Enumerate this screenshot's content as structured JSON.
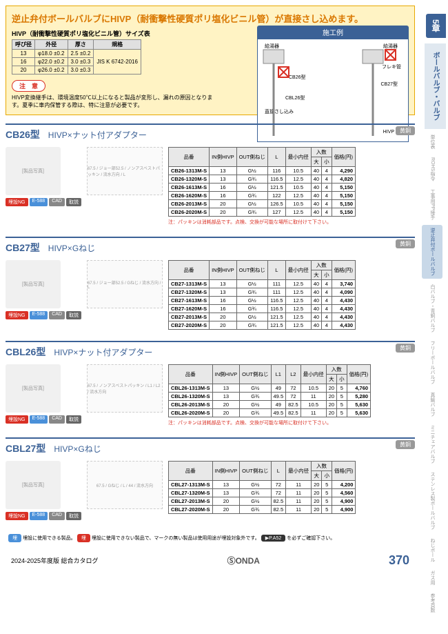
{
  "sidebar": {
    "chapter": "5章",
    "section": "ボールバルブ・バルブ",
    "mini_labels": [
      "単位表",
      "ROHS指令",
      "工事用PP接手",
      "逆止弁付ボールバルブ",
      "白バルブ・青銅バルブ",
      "フリーボールバルブ",
      "真鍮バルブ",
      "ミニチェアバルブ",
      "ステンレス製ボールバルブ",
      "ねじボール",
      "ガス用",
      "参考頁数"
    ]
  },
  "highlight": {
    "title": "逆止弁付ボールバルブにHIVP（耐衝撃性硬質ポリ塩化ビニル管）が直接さし込めます。",
    "size_caption": "HIVP（耐衝撃性硬質ポリ塩化ビニル管）サイズ表",
    "size_headers": [
      "呼び径",
      "外径",
      "厚さ",
      "規格"
    ],
    "size_rows": [
      [
        "13",
        "φ18.0 ±0.2",
        "2.5 ±0.2",
        "JIS K 6742-2016"
      ],
      [
        "16",
        "φ22.0 ±0.2",
        "3.0 ±0.3",
        ""
      ],
      [
        "20",
        "φ26.0 ±0.2",
        "3.0 ±0.3",
        ""
      ]
    ],
    "caution_label": "注　意",
    "caution_text": "HIVP変換継手は、環境温度50℃以上になると製品が変形し、漏れの原因となります。夏季に車内保管する際は、特に注意が必要です。",
    "install_label": "施工例",
    "install_labels": {
      "kyutou": "給湯器",
      "kyusui": "給湯器",
      "flexi": "フレキ管",
      "cb26": "CB26型",
      "cb27": "CB27型",
      "cbl26": "CBL26型",
      "hivp": "HIVP",
      "sasikomi": "直接さし込み"
    }
  },
  "badges": {
    "ng": "埋設NG",
    "e588": "E-588",
    "cad": "CAD",
    "link": "取説"
  },
  "products": [
    {
      "id": "cb26",
      "title": "CB26型",
      "subtitle": "HIVP×ナット付アダプター",
      "material": "黄銅",
      "headers": [
        "品番",
        "IN側HIVP",
        "OUT側ねじ",
        "L",
        "最小内径",
        "入数大",
        "入数小",
        "価格(円)"
      ],
      "header_span": {
        "label_inqty": "入数",
        "cols": [
          "大",
          "小"
        ]
      },
      "rows": [
        [
          "CB26-1313M-S",
          "13",
          "G½",
          "116",
          "10.5",
          "40",
          "4",
          "4,290"
        ],
        [
          "CB26-1320M-S",
          "13",
          "G¾",
          "116.5",
          "12.5",
          "40",
          "4",
          "4,820"
        ],
        [
          "CB26-1613M-S",
          "16",
          "G½",
          "121.5",
          "10.5",
          "40",
          "4",
          "5,150"
        ],
        [
          "CB26-1620M-S",
          "16",
          "G¾",
          "122",
          "12.5",
          "40",
          "4",
          "5,150"
        ],
        [
          "CB26-2013M-S",
          "20",
          "G½",
          "126.5",
          "10.5",
          "40",
          "4",
          "5,150"
        ],
        [
          "CB26-2020M-S",
          "20",
          "G¾",
          "127",
          "12.5",
          "40",
          "4",
          "5,150"
        ]
      ],
      "note": "注：パッキンは消耗部品です。点検、交換が可能な場所に取付けて下さい。",
      "diagram_labels": [
        "67.5",
        "ジョー部52.5",
        "ノンアスベストパッキン",
        "流水方向",
        "L"
      ]
    },
    {
      "id": "cb27",
      "title": "CB27型",
      "subtitle": "HIVP×Gねじ",
      "material": "黄銅",
      "headers": [
        "品番",
        "IN側HIVP",
        "OUT側ねじ",
        "L",
        "最小内径",
        "入数大",
        "入数小",
        "価格(円)"
      ],
      "rows": [
        [
          "CB27-1313M-S",
          "13",
          "G½",
          "111",
          "12.5",
          "40",
          "4",
          "3,740"
        ],
        [
          "CB27-1320M-S",
          "13",
          "G¾",
          "111",
          "12.5",
          "40",
          "4",
          "4,090"
        ],
        [
          "CB27-1613M-S",
          "16",
          "G½",
          "116.5",
          "12.5",
          "40",
          "4",
          "4,430"
        ],
        [
          "CB27-1620M-S",
          "16",
          "G¾",
          "116.5",
          "12.5",
          "40",
          "4",
          "4,430"
        ],
        [
          "CB27-2013M-S",
          "20",
          "G½",
          "121.5",
          "12.5",
          "40",
          "4",
          "4,430"
        ],
        [
          "CB27-2020M-S",
          "20",
          "G¾",
          "121.5",
          "12.5",
          "40",
          "4",
          "4,430"
        ]
      ],
      "diagram_labels": [
        "67.5",
        "ジョー部52.5",
        "Gねじ",
        "流水方向",
        "L"
      ]
    },
    {
      "id": "cbl26",
      "title": "CBL26型",
      "subtitle": "HIVP×ナット付アダプター",
      "material": "黄銅",
      "headers": [
        "品番",
        "IN側HIVP",
        "OUT側ねじ",
        "L1",
        "L2",
        "最小内径",
        "入数大",
        "入数小",
        "価格(円)"
      ],
      "rows": [
        [
          "CBL26-1313M-S",
          "13",
          "G½",
          "49",
          "72",
          "10.5",
          "20",
          "5",
          "4,760"
        ],
        [
          "CBL26-1320M-S",
          "13",
          "G¾",
          "49.5",
          "72",
          "11",
          "20",
          "5",
          "5,280"
        ],
        [
          "CBL26-2013M-S",
          "20",
          "G½",
          "49",
          "82.5",
          "10.5",
          "20",
          "5",
          "5,630"
        ],
        [
          "CBL26-2020M-S",
          "20",
          "G¾",
          "49.5",
          "82.5",
          "11",
          "20",
          "5",
          "5,630"
        ]
      ],
      "note": "注：パッキンは消耗部品です。点検、交換が可能な場所に取付けて下さい。",
      "diagram_labels": [
        "67.5",
        "ノンアスベストパッキン",
        "L1",
        "L2",
        "流水方向"
      ]
    },
    {
      "id": "cbl27",
      "title": "CBL27型",
      "subtitle": "HIVP×Gねじ",
      "material": "黄銅",
      "headers": [
        "品番",
        "IN側HIVP",
        "OUT側ねじ",
        "L",
        "最小内径",
        "入数大",
        "入数小",
        "価格(円)"
      ],
      "rows": [
        [
          "CBL27-1313M-S",
          "13",
          "G½",
          "72",
          "11",
          "20",
          "5",
          "4,200"
        ],
        [
          "CBL27-1320M-S",
          "13",
          "G¾",
          "72",
          "11",
          "20",
          "5",
          "4,560"
        ],
        [
          "CBL27-2013M-S",
          "20",
          "G½",
          "82.5",
          "11",
          "20",
          "5",
          "4,900"
        ],
        [
          "CBL27-2020M-S",
          "20",
          "G¾",
          "82.5",
          "11",
          "20",
          "5",
          "4,900"
        ]
      ],
      "diagram_labels": [
        "67.5",
        "Gねじ",
        "L",
        "44",
        "流水方向"
      ]
    }
  ],
  "footer_note": {
    "blue_prefix": "埋",
    "text1": " 埋設に使用できる製品。",
    "red_prefix": "埋",
    "text2": " 埋設に使用できない製品で、マークの無い製品は使用用途が埋設対象外です。",
    "page_ref": "▶P.A52",
    "text3": " を必ずご確認下さい。"
  },
  "page_footer": {
    "year": "2024-2025年度版 総合カタログ",
    "logo": "ⓈONDA",
    "pagenum": "370"
  }
}
